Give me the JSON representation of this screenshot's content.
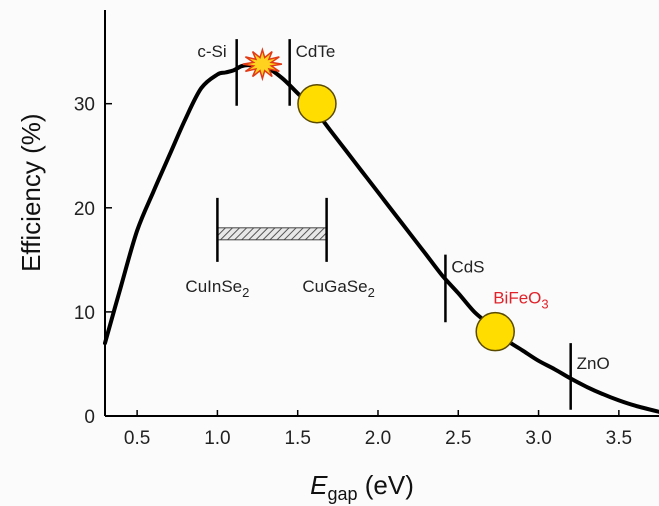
{
  "chart_data": {
    "type": "line",
    "xlabel": {
      "main": "E",
      "sub": "gap",
      "rest": " (eV)"
    },
    "ylabel": "Efficiency (%)",
    "xlim": [
      0.3,
      3.75
    ],
    "ylim": [
      0,
      39
    ],
    "x_ticks": [
      "0.5",
      "1.0",
      "1.5",
      "2.0",
      "2.5",
      "3.0",
      "3.5"
    ],
    "y_ticks": [
      "0",
      "10",
      "20",
      "30"
    ],
    "series": [
      {
        "x": [
          0.3,
          0.4,
          0.5,
          0.6,
          0.7,
          0.8,
          0.9,
          1.0,
          1.05,
          1.1,
          1.15,
          1.2,
          1.3,
          1.4,
          1.5,
          1.6,
          1.7,
          1.8,
          1.9,
          2.0,
          2.1,
          2.2,
          2.3,
          2.4,
          2.5,
          2.6,
          2.7,
          2.8,
          2.9,
          3.0,
          3.1,
          3.2,
          3.3,
          3.4,
          3.5,
          3.6,
          3.75
        ],
        "y": [
          7.0,
          12.5,
          17.8,
          21.5,
          25.0,
          28.5,
          31.5,
          32.8,
          33.0,
          33.2,
          33.6,
          33.7,
          33.5,
          32.5,
          31.0,
          29.5,
          27.5,
          25.5,
          23.5,
          21.5,
          19.5,
          17.5,
          15.5,
          13.5,
          11.8,
          10.0,
          8.7,
          7.3,
          6.3,
          5.3,
          4.5,
          3.6,
          2.8,
          2.1,
          1.5,
          1.0,
          0.4
        ]
      }
    ],
    "markers": [
      {
        "name": "c-Si",
        "x": 1.12,
        "y0": 29.8,
        "y1": 36.2
      },
      {
        "name": "CdTe",
        "x": 1.45,
        "y0": 29.8,
        "y1": 36.2
      },
      {
        "name": "CdS",
        "x": 2.42,
        "y0": 9.0,
        "y1": 15.5
      },
      {
        "name": "ZnO",
        "x": 3.2,
        "y0": 0.6,
        "y1": 7.0
      }
    ],
    "range_bar": {
      "left_label": "CuInSe",
      "left_sub": "2",
      "right_label": "CuGaSe",
      "right_sub": "2",
      "x0": 1.0,
      "x1": 1.68,
      "y": 17.5
    },
    "points": [
      {
        "name": "",
        "x": 1.62,
        "y": 30.0
      },
      {
        "name": "BiFeO",
        "sub": "3",
        "x": 2.73,
        "y": 8.1
      }
    ],
    "burst": {
      "x": 1.28,
      "y": 33.8
    }
  },
  "colors": {
    "curve": "#000000",
    "point_fill": "#ffdd00",
    "point_stroke": "#5a4a00",
    "burst_fill": "#ffd21f",
    "burst_stroke": "#e23a16",
    "highlight_label": "#e0232b"
  }
}
